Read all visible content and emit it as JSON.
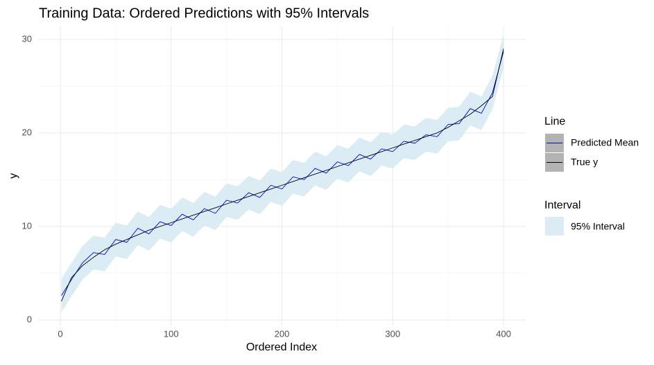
{
  "chart_data": {
    "type": "line",
    "title": "Training Data: Ordered Predictions with 95% Intervals",
    "x_label": "Ordered Index",
    "y_label": "y",
    "x": [
      1,
      10,
      20,
      30,
      40,
      50,
      60,
      70,
      80,
      90,
      100,
      110,
      120,
      130,
      140,
      150,
      160,
      170,
      180,
      190,
      200,
      210,
      220,
      230,
      240,
      250,
      260,
      270,
      280,
      290,
      300,
      310,
      320,
      330,
      340,
      350,
      360,
      370,
      380,
      390,
      400
    ],
    "band": {
      "name": "95% Interval",
      "color": "#dbecf5",
      "lower": [
        0.8,
        2.5,
        4.3,
        5.4,
        5.2,
        6.8,
        6.5,
        8.0,
        7.4,
        8.7,
        8.3,
        9.5,
        8.9,
        10.1,
        9.6,
        11.0,
        10.7,
        11.8,
        11.3,
        12.6,
        12.2,
        13.5,
        13.2,
        14.4,
        13.9,
        15.1,
        14.7,
        15.9,
        15.4,
        16.5,
        16.2,
        17.3,
        17.1,
        18.0,
        17.8,
        19.1,
        19.2,
        20.8,
        20.3,
        22.5,
        26.9
      ],
      "upper": [
        4.4,
        6.1,
        7.9,
        9.0,
        8.8,
        10.4,
        10.1,
        11.6,
        11.0,
        12.3,
        11.9,
        13.1,
        12.5,
        13.7,
        13.2,
        14.6,
        14.3,
        15.4,
        14.9,
        16.2,
        15.8,
        17.1,
        16.8,
        18.0,
        17.5,
        18.7,
        18.3,
        19.5,
        19.0,
        20.1,
        19.8,
        20.9,
        20.7,
        21.6,
        21.4,
        22.7,
        22.8,
        24.4,
        23.9,
        26.1,
        30.5
      ]
    },
    "series": [
      {
        "name": "Predicted Mean",
        "color": "#0000cc",
        "values": [
          2.6,
          4.3,
          6.1,
          7.2,
          7.0,
          8.6,
          8.3,
          9.8,
          9.2,
          10.5,
          10.1,
          11.3,
          10.7,
          11.9,
          11.4,
          12.8,
          12.5,
          13.6,
          13.1,
          14.4,
          14.0,
          15.3,
          15.0,
          16.2,
          15.7,
          16.9,
          16.5,
          17.7,
          17.2,
          18.3,
          18.0,
          19.1,
          18.9,
          19.8,
          19.6,
          20.9,
          21.0,
          22.6,
          22.1,
          24.3,
          28.7
        ]
      },
      {
        "name": "True y",
        "color": "#000000",
        "values": [
          2.0,
          4.5,
          5.8,
          6.7,
          7.5,
          8.1,
          8.6,
          9.1,
          9.6,
          10.0,
          10.4,
          10.8,
          11.2,
          11.6,
          12.0,
          12.4,
          12.8,
          13.2,
          13.6,
          14.0,
          14.4,
          14.8,
          15.2,
          15.6,
          16.0,
          16.4,
          16.8,
          17.2,
          17.6,
          18.0,
          18.4,
          18.8,
          19.2,
          19.6,
          20.0,
          20.6,
          21.3,
          22.0,
          22.9,
          23.9,
          29.0
        ]
      }
    ],
    "legend_line_title": "Line",
    "legend_interval_title": "Interval",
    "xlim": [
      -20,
      420
    ],
    "ylim": [
      -0.6,
      31.4
    ],
    "xticks": [
      0,
      100,
      200,
      300,
      400
    ],
    "yticks": [
      0,
      10,
      20,
      30
    ],
    "x_minor_ticks": [
      50,
      150,
      250,
      350
    ],
    "y_minor_ticks": [
      5,
      15,
      25
    ],
    "grid": true
  }
}
